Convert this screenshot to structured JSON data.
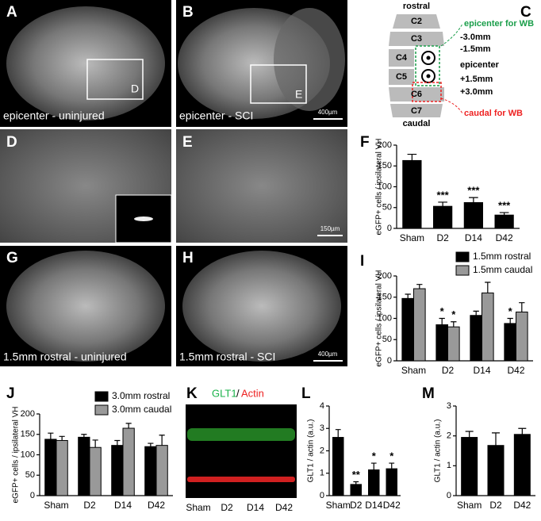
{
  "panels": {
    "A": {
      "letter": "A",
      "caption": "epicenter - uninjured",
      "box": "D"
    },
    "B": {
      "letter": "B",
      "caption": "epicenter - SCI",
      "box": "E",
      "scale": "400µm"
    },
    "D": {
      "letter": "D"
    },
    "E": {
      "letter": "E",
      "scale": "150µm"
    },
    "G": {
      "letter": "G",
      "caption": "1.5mm rostral - uninjured"
    },
    "H": {
      "letter": "H",
      "caption": "1.5mm rostral - SCI",
      "scale": "400µm"
    }
  },
  "diagram": {
    "letter": "C",
    "top": "rostral",
    "bottom": "caudal",
    "segments": [
      "C2",
      "C3",
      "C4",
      "C5",
      "C6",
      "C7"
    ],
    "levels": [
      "-3.0mm",
      "-1.5mm",
      "epicenter",
      "+1.5mm",
      "+3.0mm"
    ],
    "wb_epicenter": "epicenter for WB",
    "wb_caudal": "caudal for WB"
  },
  "blot": {
    "letter": "K",
    "target": "GLT1",
    "separator": "/",
    "control": "Actin",
    "lanes": [
      "Sham",
      "D2",
      "D14",
      "D42"
    ]
  },
  "chart_data": [
    {
      "type": "bar",
      "label": "F",
      "y_label": "eGFP+ cells / ipsilateral VH",
      "categories": [
        "Sham",
        "D2",
        "D14",
        "D42"
      ],
      "values": [
        163,
        53,
        62,
        32
      ],
      "errors": [
        15,
        10,
        12,
        6
      ],
      "value_annotations": [
        null,
        "***",
        "***",
        "***"
      ],
      "color": "#000000",
      "ylim": [
        0,
        200
      ],
      "yticks": [
        0,
        50,
        100,
        150,
        200
      ]
    },
    {
      "type": "bar",
      "label": "I",
      "y_label": "eGFP+ cells / ipsilateral VH",
      "categories": [
        "Sham",
        "D2",
        "D14",
        "D42"
      ],
      "series": [
        {
          "name": "1.5mm rostral",
          "color": "#000000",
          "values": [
            147,
            85,
            107,
            88
          ],
          "errors": [
            10,
            15,
            10,
            12
          ],
          "value_annotations": [
            null,
            "*",
            null,
            "*"
          ]
        },
        {
          "name": "1.5mm caudal",
          "color": "#999999",
          "values": [
            170,
            80,
            160,
            115
          ],
          "errors": [
            10,
            12,
            25,
            22
          ],
          "value_annotations": [
            null,
            "*",
            null,
            null
          ]
        }
      ],
      "ylim": [
        0,
        200
      ],
      "yticks": [
        0,
        50,
        100,
        150,
        200
      ],
      "legend": "upper right"
    },
    {
      "type": "bar",
      "label": "J",
      "y_label": "eGFP+ cells / ipsilateral VH",
      "categories": [
        "Sham",
        "D2",
        "D14",
        "D42"
      ],
      "series": [
        {
          "name": "3.0mm rostral",
          "color": "#000000",
          "values": [
            138,
            143,
            123,
            120
          ],
          "errors": [
            15,
            7,
            12,
            8
          ]
        },
        {
          "name": "3.0mm caudal",
          "color": "#999999",
          "values": [
            135,
            118,
            165,
            123
          ],
          "errors": [
            10,
            18,
            12,
            25
          ]
        }
      ],
      "ylim": [
        0,
        200
      ],
      "yticks": [
        0,
        50,
        100,
        150,
        200
      ],
      "legend": "upper right"
    },
    {
      "type": "bar",
      "label": "L",
      "y_label": "GLT1 / actin (a.u.)",
      "categories": [
        "Sham",
        "D2",
        "D14",
        "D42"
      ],
      "values": [
        2.6,
        0.5,
        1.15,
        1.2
      ],
      "errors": [
        0.35,
        0.12,
        0.3,
        0.25
      ],
      "value_annotations": [
        null,
        "**",
        "*",
        "*"
      ],
      "color": "#000000",
      "ylim": [
        0,
        4
      ],
      "yticks": [
        0,
        1,
        2,
        3,
        4
      ]
    },
    {
      "type": "bar",
      "label": "M",
      "y_label": "GLT1 / actin (a.u.)",
      "categories": [
        "Sham",
        "D2",
        "D42"
      ],
      "values": [
        1.95,
        1.68,
        2.05
      ],
      "errors": [
        0.2,
        0.42,
        0.2
      ],
      "color": "#000000",
      "ylim": [
        0,
        3
      ],
      "yticks": [
        0,
        1,
        2,
        3
      ]
    }
  ]
}
